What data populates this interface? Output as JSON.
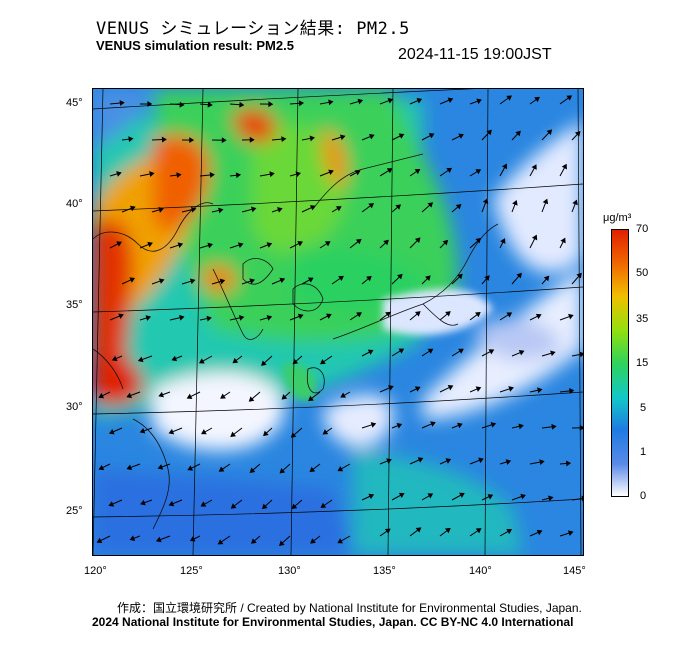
{
  "title_jp": "VENUS シミュレーション結果: PM2.5",
  "title_en": "VENUS simulation result: PM2.5",
  "timestamp": "2024-11-15 19:00JST",
  "map": {
    "lat_labels": [
      "45°",
      "40°",
      "35°",
      "30°",
      "25°"
    ],
    "lon_labels": [
      "120°",
      "125°",
      "130°",
      "135°",
      "140°",
      "145°"
    ]
  },
  "colorbar": {
    "unit": "μg/m³",
    "ticks": [
      "70",
      "50",
      "35",
      "15",
      "5",
      "1",
      "0"
    ],
    "colors": [
      "#ffffff",
      "#5a8ae8",
      "#1e7be0",
      "#12c8c8",
      "#2fd35a",
      "#90e010",
      "#f0c000",
      "#f06a00",
      "#e02000"
    ]
  },
  "credit": "作成：国立環境研究所 / Created by National Institute for Environmental Studies, Japan.",
  "copyright": "2024 National Institute for Environmental Studies, Japan. CC BY-NC 4.0 International"
}
